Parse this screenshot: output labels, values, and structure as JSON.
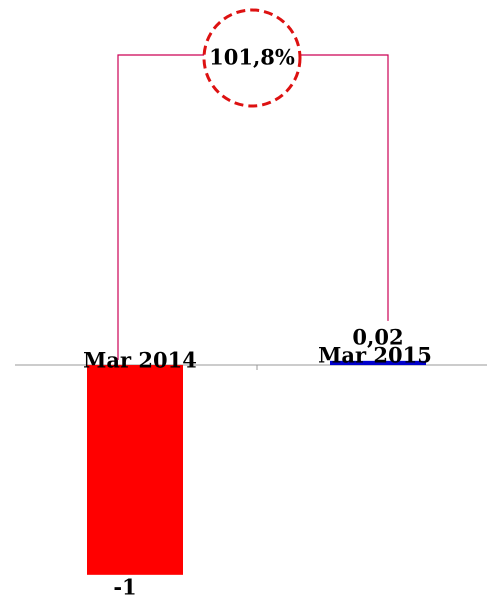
{
  "chart_data": {
    "type": "bar",
    "categories": [
      "Mar 2014",
      "Mar 2015"
    ],
    "values": [
      -1,
      0.02
    ],
    "value_labels": [
      "-1",
      "0,02"
    ],
    "colors": [
      "#ff0000",
      "#0000cc"
    ],
    "ylim": [
      -1.12,
      1.74
    ],
    "annotation": "101,8%"
  }
}
